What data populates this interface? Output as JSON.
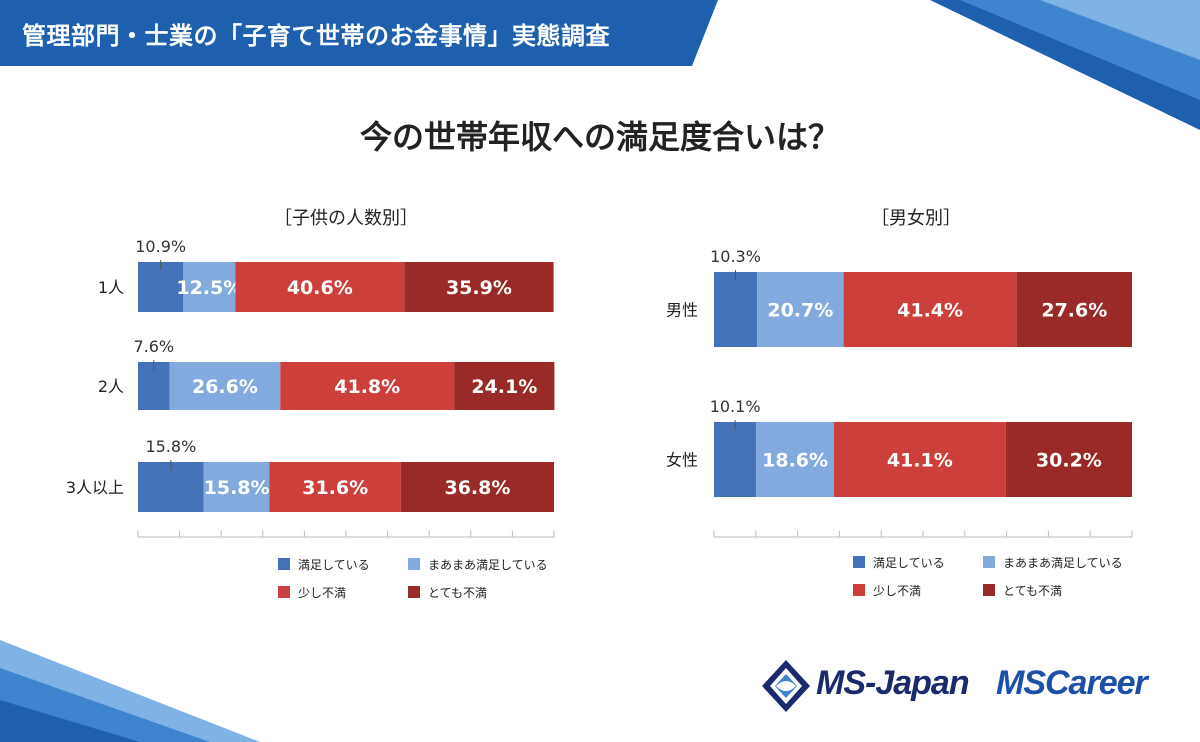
{
  "header": {
    "title": "管理部門・士業の「子育て世帯のお金事情」実態調査"
  },
  "main_title": "今の世帯年収への満足度合いは？",
  "colors": {
    "header": "#1e5fae",
    "series": [
      "#4472b8",
      "#82aadf",
      "#cc3f3b",
      "#9a2a27"
    ]
  },
  "chart_data": [
    {
      "type": "bar",
      "orientation": "horizontal",
      "stacked": "percent",
      "title": "［子供の人数別］",
      "categories": [
        "1人",
        "2人",
        "3人以上"
      ],
      "series": [
        {
          "name": "満足している",
          "values": [
            10.9,
            7.6,
            15.8
          ]
        },
        {
          "name": "まあまあ満足している",
          "values": [
            12.5,
            26.6,
            15.8
          ]
        },
        {
          "name": "少し不満",
          "values": [
            40.6,
            41.8,
            31.6
          ]
        },
        {
          "name": "とても不満",
          "values": [
            35.9,
            24.1,
            36.8
          ]
        }
      ],
      "labels": [
        [
          "10.9%",
          "12.5%",
          "40.6%",
          "35.9%"
        ],
        [
          "7.6%",
          "26.6%",
          "41.8%",
          "24.1%"
        ],
        [
          "15.8%",
          "15.8%",
          "31.6%",
          "36.8%"
        ]
      ],
      "xlim": [
        0,
        100
      ]
    },
    {
      "type": "bar",
      "orientation": "horizontal",
      "stacked": "percent",
      "title": "［男女別］",
      "categories": [
        "男性",
        "女性"
      ],
      "series": [
        {
          "name": "満足している",
          "values": [
            10.3,
            10.1
          ]
        },
        {
          "name": "まあまあ満足している",
          "values": [
            20.7,
            18.6
          ]
        },
        {
          "name": "少し不満",
          "values": [
            41.4,
            41.1
          ]
        },
        {
          "name": "とても不満",
          "values": [
            27.6,
            30.2
          ]
        }
      ],
      "labels": [
        [
          "10.3%",
          "20.7%",
          "41.4%",
          "27.6%"
        ],
        [
          "10.1%",
          "18.6%",
          "41.1%",
          "30.2%"
        ]
      ],
      "xlim": [
        0,
        100
      ]
    }
  ],
  "logos": {
    "msjapan": "MS-Japan",
    "mscareer": "MSCareer"
  }
}
